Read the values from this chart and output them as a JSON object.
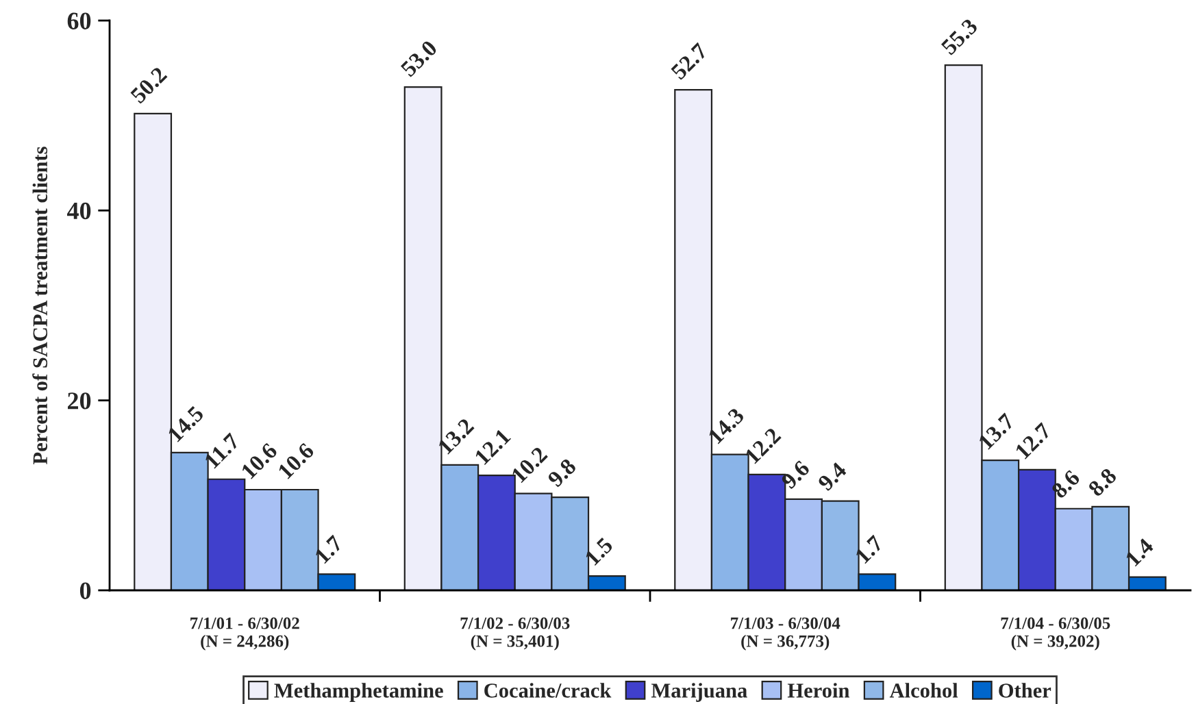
{
  "chart_data": {
    "type": "bar",
    "ylabel": "Percent of SACPA treatment clients",
    "categories": [
      "7/1/01 - 6/30/02\n(N = 24,286)",
      "7/1/02 - 6/30/03\n(N = 35,401)",
      "7/1/03 - 6/30/04\n(N = 36,773)",
      "7/1/04 - 6/30/05\n(N = 39,202)"
    ],
    "series": [
      {
        "name": "Methamphetamine",
        "color": "#eeeefa",
        "values": [
          50.2,
          53.0,
          52.7,
          55.3
        ],
        "value_labels": [
          "50.2",
          "53.0",
          "52.7",
          "55.3"
        ]
      },
      {
        "name": "Cocaine/crack",
        "color": "#8ab4e8",
        "values": [
          14.5,
          13.2,
          14.3,
          13.7
        ],
        "value_labels": [
          "14.5",
          "13.2",
          "14.3",
          "13.7"
        ]
      },
      {
        "name": "Marijuana",
        "color": "#4040cc",
        "values": [
          11.7,
          12.1,
          12.2,
          12.7
        ],
        "value_labels": [
          "11.7",
          "12.1",
          "12.2",
          "12.7"
        ]
      },
      {
        "name": "Heroin",
        "color": "#a8c0f4",
        "values": [
          10.6,
          10.2,
          9.6,
          8.6
        ],
        "value_labels": [
          "10.6",
          "10.2",
          "9.6",
          "8.6"
        ]
      },
      {
        "name": "Alcohol",
        "color": "#90b8e8",
        "values": [
          10.6,
          9.8,
          9.4,
          8.8
        ],
        "value_labels": [
          "10.6",
          "9.8",
          "9.4",
          "8.8"
        ]
      },
      {
        "name": "Other",
        "color": "#0066cc",
        "values": [
          1.7,
          1.5,
          1.7,
          1.4
        ],
        "value_labels": [
          "1.7",
          "1.5",
          "1.7",
          "1.4"
        ]
      }
    ],
    "ylim": [
      0,
      60
    ],
    "yticks": [
      0,
      20,
      40,
      60
    ],
    "grid": false,
    "legend": "bottom"
  }
}
